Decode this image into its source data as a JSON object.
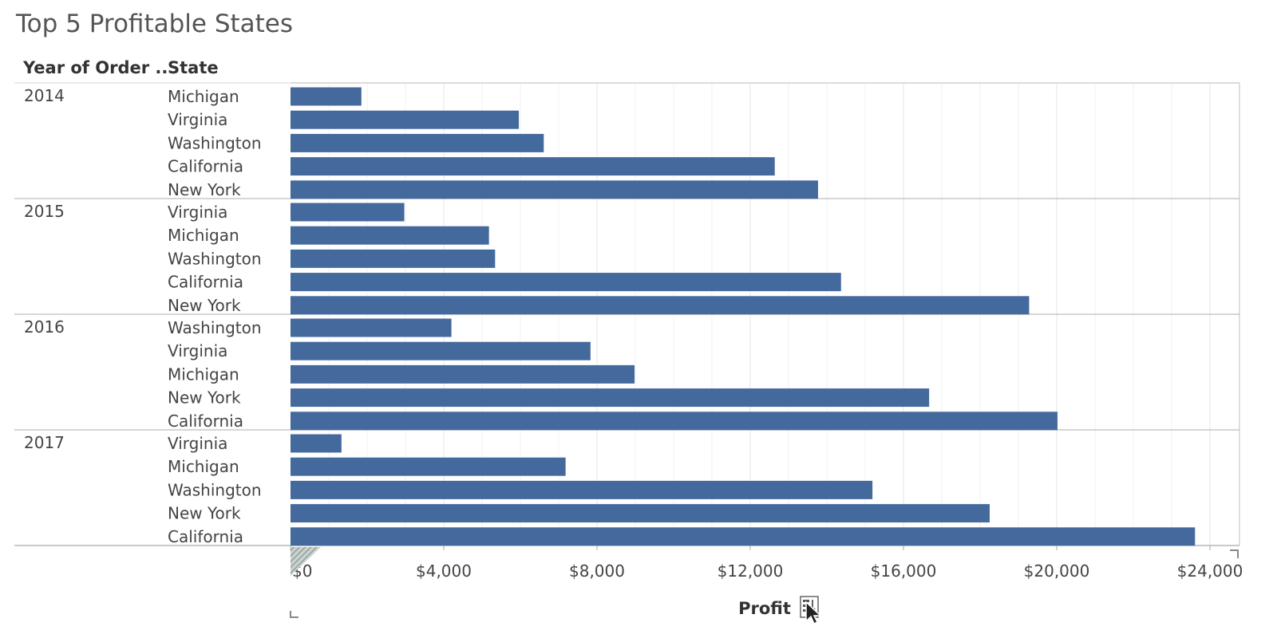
{
  "title": "Top 5 Profitable States",
  "column_headers": {
    "year": "Year of Order ..",
    "state": "State"
  },
  "chart_data": {
    "type": "bar",
    "orientation": "horizontal",
    "title": "Top 5 Profitable States",
    "xlabel": "Profit",
    "ylabel": "",
    "xlim": [
      0,
      24000
    ],
    "x_ticks": [
      0,
      4000,
      8000,
      12000,
      16000,
      20000,
      24000
    ],
    "x_tick_labels": [
      "$0",
      "$4,000",
      "$8,000",
      "$12,000",
      "$16,000",
      "$20,000",
      "$24,000"
    ],
    "grid": true,
    "bar_color": "#44699D",
    "groups": [
      {
        "year": "2014",
        "bars": [
          {
            "state": "Michigan",
            "value": 1850
          },
          {
            "state": "Virginia",
            "value": 5960
          },
          {
            "state": "Washington",
            "value": 6610
          },
          {
            "state": "California",
            "value": 12640
          },
          {
            "state": "New York",
            "value": 13770
          }
        ]
      },
      {
        "year": "2015",
        "bars": [
          {
            "state": "Virginia",
            "value": 2970
          },
          {
            "state": "Michigan",
            "value": 5180
          },
          {
            "state": "Washington",
            "value": 5340
          },
          {
            "state": "California",
            "value": 14370
          },
          {
            "state": "New York",
            "value": 19280
          }
        ]
      },
      {
        "year": "2016",
        "bars": [
          {
            "state": "Washington",
            "value": 4200
          },
          {
            "state": "Virginia",
            "value": 7830
          },
          {
            "state": "Michigan",
            "value": 8980
          },
          {
            "state": "New York",
            "value": 16670
          },
          {
            "state": "California",
            "value": 20020
          }
        ]
      },
      {
        "year": "2017",
        "bars": [
          {
            "state": "Virginia",
            "value": 1330
          },
          {
            "state": "Michigan",
            "value": 7180
          },
          {
            "state": "Washington",
            "value": 15190
          },
          {
            "state": "New York",
            "value": 18250
          },
          {
            "state": "California",
            "value": 23610
          }
        ]
      }
    ]
  },
  "icons": {
    "axis_sort": "sort-descending-icon",
    "cursor": "mouse-pointer-icon"
  }
}
